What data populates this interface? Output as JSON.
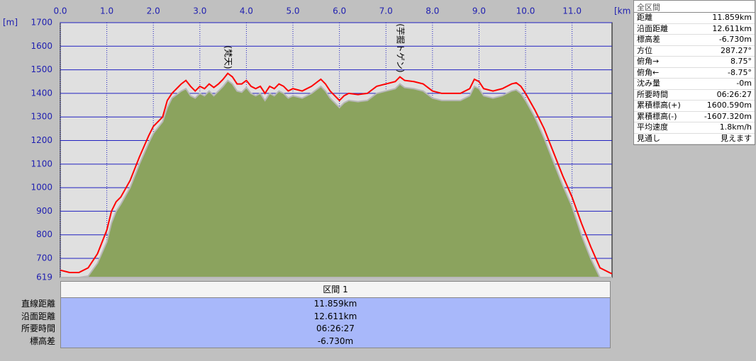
{
  "chart_data": {
    "type": "area",
    "y_unit": "[m]",
    "x_unit": "[km]",
    "x": [
      0,
      0.2,
      0.4,
      0.6,
      0.8,
      1.0,
      1.1,
      1.2,
      1.3,
      1.5,
      1.7,
      1.9,
      2.0,
      2.2,
      2.3,
      2.4,
      2.5,
      2.6,
      2.7,
      2.8,
      2.9,
      3.0,
      3.1,
      3.2,
      3.3,
      3.4,
      3.5,
      3.6,
      3.7,
      3.8,
      3.9,
      4.0,
      4.1,
      4.2,
      4.3,
      4.4,
      4.5,
      4.6,
      4.7,
      4.8,
      4.9,
      5.0,
      5.2,
      5.4,
      5.6,
      5.7,
      5.8,
      5.9,
      6.0,
      6.1,
      6.2,
      6.4,
      6.6,
      6.8,
      7.0,
      7.2,
      7.3,
      7.4,
      7.6,
      7.8,
      8.0,
      8.2,
      8.4,
      8.6,
      8.8,
      8.9,
      9.0,
      9.1,
      9.3,
      9.5,
      9.7,
      9.8,
      9.9,
      10.0,
      10.2,
      10.4,
      10.6,
      10.8,
      11.0,
      11.2,
      11.4,
      11.6,
      11.8,
      11.859
    ],
    "series": [
      {
        "color": "#8ba35e",
        "fill": true,
        "values": [
          619,
          619,
          619,
          625,
          680,
          770,
          850,
          900,
          930,
          1000,
          1100,
          1190,
          1230,
          1280,
          1340,
          1380,
          1395,
          1410,
          1420,
          1390,
          1380,
          1400,
          1390,
          1410,
          1390,
          1410,
          1430,
          1455,
          1440,
          1410,
          1405,
          1425,
          1400,
          1390,
          1400,
          1370,
          1400,
          1390,
          1410,
          1400,
          1380,
          1390,
          1380,
          1400,
          1430,
          1410,
          1380,
          1360,
          1340,
          1360,
          1370,
          1365,
          1370,
          1400,
          1410,
          1420,
          1440,
          1425,
          1420,
          1410,
          1380,
          1370,
          1370,
          1370,
          1390,
          1430,
          1420,
          1390,
          1380,
          1390,
          1410,
          1415,
          1400,
          1370,
          1300,
          1210,
          1110,
          1010,
          920,
          800,
          700,
          619,
          619,
          619
        ]
      },
      {
        "color": "#ff0000",
        "fill": false,
        "values": [
          650,
          640,
          640,
          660,
          720,
          820,
          900,
          940,
          960,
          1030,
          1130,
          1220,
          1260,
          1300,
          1370,
          1400,
          1420,
          1440,
          1455,
          1430,
          1410,
          1430,
          1420,
          1440,
          1425,
          1440,
          1460,
          1485,
          1470,
          1440,
          1440,
          1455,
          1430,
          1420,
          1430,
          1400,
          1430,
          1420,
          1440,
          1430,
          1410,
          1420,
          1410,
          1430,
          1460,
          1440,
          1410,
          1390,
          1370,
          1390,
          1400,
          1395,
          1400,
          1430,
          1440,
          1450,
          1470,
          1455,
          1450,
          1440,
          1410,
          1400,
          1400,
          1400,
          1420,
          1460,
          1450,
          1420,
          1410,
          1420,
          1440,
          1445,
          1430,
          1400,
          1330,
          1250,
          1150,
          1050,
          960,
          850,
          750,
          660,
          640,
          635
        ]
      }
    ],
    "xlim": [
      0,
      11.859
    ],
    "ylim": [
      619,
      1700
    ],
    "xticks": [
      {
        "value": 0,
        "label": "0.0"
      },
      {
        "value": 1,
        "label": "1.0"
      },
      {
        "value": 2,
        "label": "2.0"
      },
      {
        "value": 3,
        "label": "3.0"
      },
      {
        "value": 4,
        "label": "4.0"
      },
      {
        "value": 5,
        "label": "5.0"
      },
      {
        "value": 6,
        "label": "6.0"
      },
      {
        "value": 7,
        "label": "7.0"
      },
      {
        "value": 8,
        "label": "8.0"
      },
      {
        "value": 9,
        "label": "9.0"
      },
      {
        "value": 10,
        "label": "10.0"
      },
      {
        "value": 11,
        "label": "11.0"
      }
    ],
    "yticks": [
      619,
      700,
      800,
      900,
      1000,
      1100,
      1200,
      1300,
      1400,
      1500,
      1600,
      1700
    ],
    "grid": true,
    "annotations": [
      {
        "text": "(梵天)",
        "x": 3.6,
        "y": 1485
      },
      {
        "text": "(芋掘トゲン)",
        "x": 7.3,
        "y": 1470
      }
    ]
  },
  "summary": {
    "title": "全区間",
    "rows": [
      [
        "距離",
        "11.859km"
      ],
      [
        "沿面距離",
        "12.611km"
      ],
      [
        "標高差",
        "-6.730m"
      ],
      [
        "方位",
        "287.27°"
      ],
      [
        "俯角→",
        "8.75°"
      ],
      [
        "俯角←",
        "-8.75°"
      ],
      [
        "沈み量",
        "-0m"
      ],
      [
        "所要時間",
        "06:26:27"
      ],
      [
        "累積標高(+)",
        "1600.590m"
      ],
      [
        "累積標高(-)",
        "-1607.320m"
      ],
      [
        "平均速度",
        "1.8km/h"
      ],
      [
        "見通し",
        "見えます"
      ]
    ]
  },
  "section_table": {
    "header": "区間 1",
    "rows": [
      [
        "直線距離",
        "11.859km"
      ],
      [
        "沿面距離",
        "12.611km"
      ],
      [
        "所要時間",
        "06:26:27"
      ],
      [
        "標高差",
        "-6.730m"
      ]
    ]
  }
}
